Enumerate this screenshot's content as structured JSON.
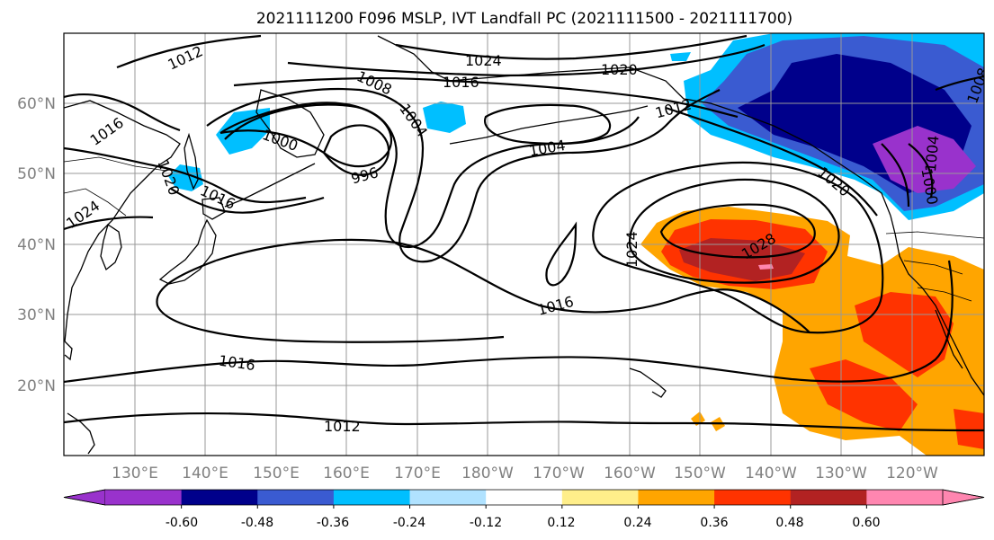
{
  "title": "2021111200 F096 MSLP, IVT Landfall PC (2021111500 - 2021111700)",
  "lon_labels": [
    "130°E",
    "140°E",
    "150°E",
    "160°E",
    "170°E",
    "180°W",
    "170°W",
    "160°W",
    "150°W",
    "140°W",
    "130°W",
    "120°W"
  ],
  "lat_labels": [
    "60°N",
    "50°N",
    "40°N",
    "30°N",
    "20°N"
  ],
  "isobar_labels": {
    "l1012_nw": "1012",
    "l1024_n": "1024",
    "l1020_n": "1020",
    "l1016_n": "1016",
    "l1008": "1008",
    "l1004": "1004",
    "l1000": "1000",
    "l996": "996",
    "l1016_w": "1016",
    "l1020_w": "1020",
    "l1024_w": "1024",
    "l1016_jp": "1016",
    "l1004_gulf": "1004",
    "l1012_ak": "1012",
    "l1020_ne": "1020",
    "l1028": "1028",
    "l1024_e": "1024",
    "l1016_mid": "1016",
    "l1016_s": "1016",
    "l1012_s": "1012",
    "l1004_ne": "1004",
    "l1000_ne": "1000",
    "l1008_ne": "1008"
  },
  "colorbar": {
    "levels": [
      "-0.60",
      "-0.48",
      "-0.36",
      "-0.24",
      "-0.12",
      "0.12",
      "0.24",
      "0.36",
      "0.48",
      "0.60"
    ],
    "colors": [
      "#9932cc",
      "#00008b",
      "#3a5bd1",
      "#00bfff",
      "#b0e2ff",
      "#ffffff",
      "#ffee8a",
      "#ffa500",
      "#ff3300",
      "#b22222",
      "#ff86b0"
    ]
  }
}
